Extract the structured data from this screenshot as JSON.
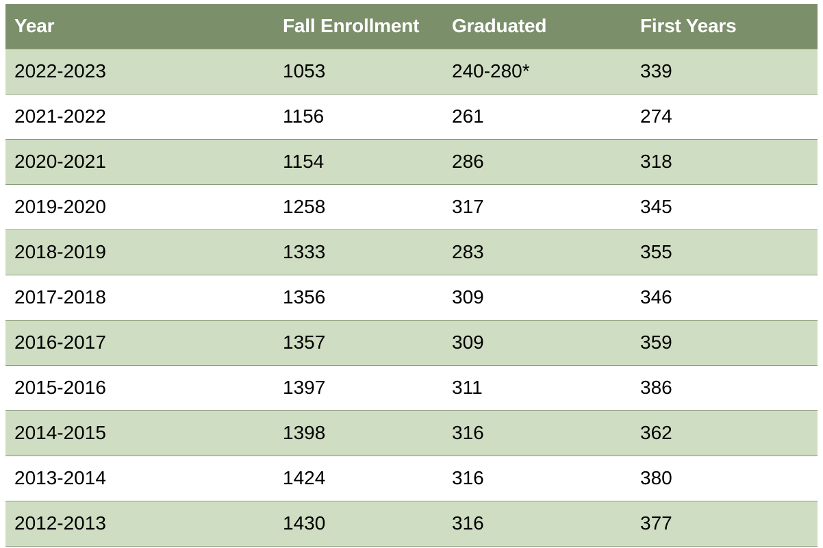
{
  "table": {
    "headers": [
      "Year",
      "Fall Enrollment",
      "Graduated",
      "First Years"
    ],
    "rows": [
      [
        "2022-2023",
        "1053",
        "240-280*",
        "339"
      ],
      [
        "2021-2022",
        "1156",
        "261",
        "274"
      ],
      [
        "2020-2021",
        "1154",
        "286",
        "318"
      ],
      [
        "2019-2020",
        "1258",
        "317",
        "345"
      ],
      [
        "2018-2019",
        "1333",
        "283",
        "355"
      ],
      [
        "2017-2018",
        "1356",
        "309",
        "346"
      ],
      [
        "2016-2017",
        "1357",
        "309",
        "359"
      ],
      [
        "2015-2016",
        "1397",
        "311",
        "386"
      ],
      [
        "2014-2015",
        "1398",
        "316",
        "362"
      ],
      [
        "2013-2014",
        "1424",
        "316",
        "380"
      ],
      [
        "2012-2013",
        "1430",
        "316",
        "377"
      ]
    ]
  },
  "colors": {
    "header_bg": "#7b8f6a",
    "header_text": "#ffffff",
    "shaded_row": "#cfddc2",
    "plain_row": "#ffffff",
    "border": "#879a75"
  }
}
